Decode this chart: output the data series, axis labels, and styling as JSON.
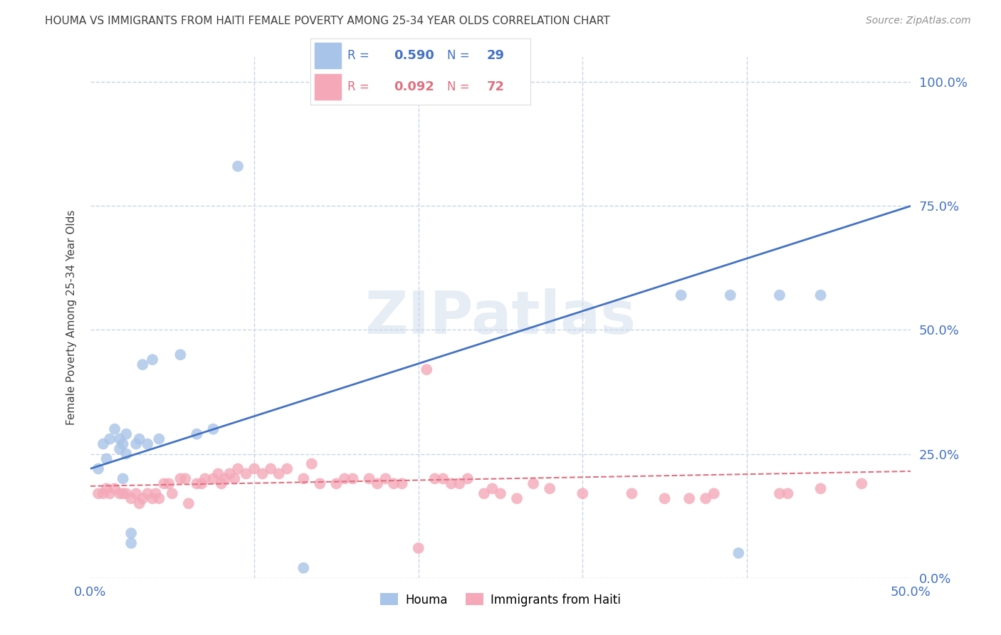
{
  "title": "HOUMA VS IMMIGRANTS FROM HAITI FEMALE POVERTY AMONG 25-34 YEAR OLDS CORRELATION CHART",
  "source": "Source: ZipAtlas.com",
  "ylabel": "Female Poverty Among 25-34 Year Olds",
  "xlim": [
    0.0,
    0.5
  ],
  "ylim": [
    0.0,
    1.05
  ],
  "yticks": [
    0.0,
    0.25,
    0.5,
    0.75,
    1.0
  ],
  "ytick_labels": [
    "0.0%",
    "25.0%",
    "50.0%",
    "75.0%",
    "100.0%"
  ],
  "xticks": [
    0.0,
    0.5
  ],
  "xtick_labels": [
    "0.0%",
    "50.0%"
  ],
  "houma_color": "#a8c4e8",
  "haiti_color": "#f4a8b8",
  "houma_line_color": "#4472c4",
  "haiti_line_color": "#e07080",
  "R_houma": 0.59,
  "N_houma": 29,
  "R_haiti": 0.092,
  "N_haiti": 72,
  "background_color": "#ffffff",
  "grid_color": "#c8d4e8",
  "title_color": "#404040",
  "axis_label_color": "#404040",
  "tick_label_color": "#4472c4",
  "watermark": "ZIPatlas",
  "houma_x": [
    0.005,
    0.008,
    0.01,
    0.012,
    0.015,
    0.018,
    0.018,
    0.02,
    0.02,
    0.022,
    0.022,
    0.025,
    0.025,
    0.028,
    0.03,
    0.032,
    0.035,
    0.038,
    0.042,
    0.055,
    0.065,
    0.075,
    0.09,
    0.13,
    0.36,
    0.39,
    0.395,
    0.42,
    0.445
  ],
  "houma_y": [
    0.22,
    0.27,
    0.24,
    0.28,
    0.3,
    0.26,
    0.28,
    0.2,
    0.27,
    0.25,
    0.29,
    0.07,
    0.09,
    0.27,
    0.28,
    0.43,
    0.27,
    0.44,
    0.28,
    0.45,
    0.29,
    0.3,
    0.83,
    0.02,
    0.57,
    0.57,
    0.05,
    0.57,
    0.57
  ],
  "haiti_x": [
    0.005,
    0.008,
    0.01,
    0.012,
    0.015,
    0.018,
    0.02,
    0.022,
    0.025,
    0.028,
    0.03,
    0.032,
    0.035,
    0.038,
    0.04,
    0.042,
    0.045,
    0.048,
    0.05,
    0.055,
    0.058,
    0.06,
    0.065,
    0.068,
    0.07,
    0.075,
    0.078,
    0.08,
    0.082,
    0.085,
    0.088,
    0.09,
    0.095,
    0.1,
    0.105,
    0.11,
    0.115,
    0.12,
    0.13,
    0.135,
    0.14,
    0.15,
    0.155,
    0.16,
    0.17,
    0.175,
    0.18,
    0.185,
    0.19,
    0.2,
    0.205,
    0.21,
    0.215,
    0.22,
    0.225,
    0.23,
    0.24,
    0.245,
    0.25,
    0.26,
    0.27,
    0.28,
    0.3,
    0.33,
    0.35,
    0.365,
    0.375,
    0.38,
    0.42,
    0.425,
    0.445,
    0.47
  ],
  "haiti_y": [
    0.17,
    0.17,
    0.18,
    0.17,
    0.18,
    0.17,
    0.17,
    0.17,
    0.16,
    0.17,
    0.15,
    0.16,
    0.17,
    0.16,
    0.17,
    0.16,
    0.19,
    0.19,
    0.17,
    0.2,
    0.2,
    0.15,
    0.19,
    0.19,
    0.2,
    0.2,
    0.21,
    0.19,
    0.2,
    0.21,
    0.2,
    0.22,
    0.21,
    0.22,
    0.21,
    0.22,
    0.21,
    0.22,
    0.2,
    0.23,
    0.19,
    0.19,
    0.2,
    0.2,
    0.2,
    0.19,
    0.2,
    0.19,
    0.19,
    0.06,
    0.42,
    0.2,
    0.2,
    0.19,
    0.19,
    0.2,
    0.17,
    0.18,
    0.17,
    0.16,
    0.19,
    0.18,
    0.17,
    0.17,
    0.16,
    0.16,
    0.16,
    0.17,
    0.17,
    0.17,
    0.18,
    0.19
  ],
  "houma_line_x": [
    0.0,
    0.5
  ],
  "houma_line_y": [
    0.22,
    0.75
  ],
  "haiti_line_x": [
    0.0,
    0.5
  ],
  "haiti_line_y": [
    0.185,
    0.215
  ]
}
